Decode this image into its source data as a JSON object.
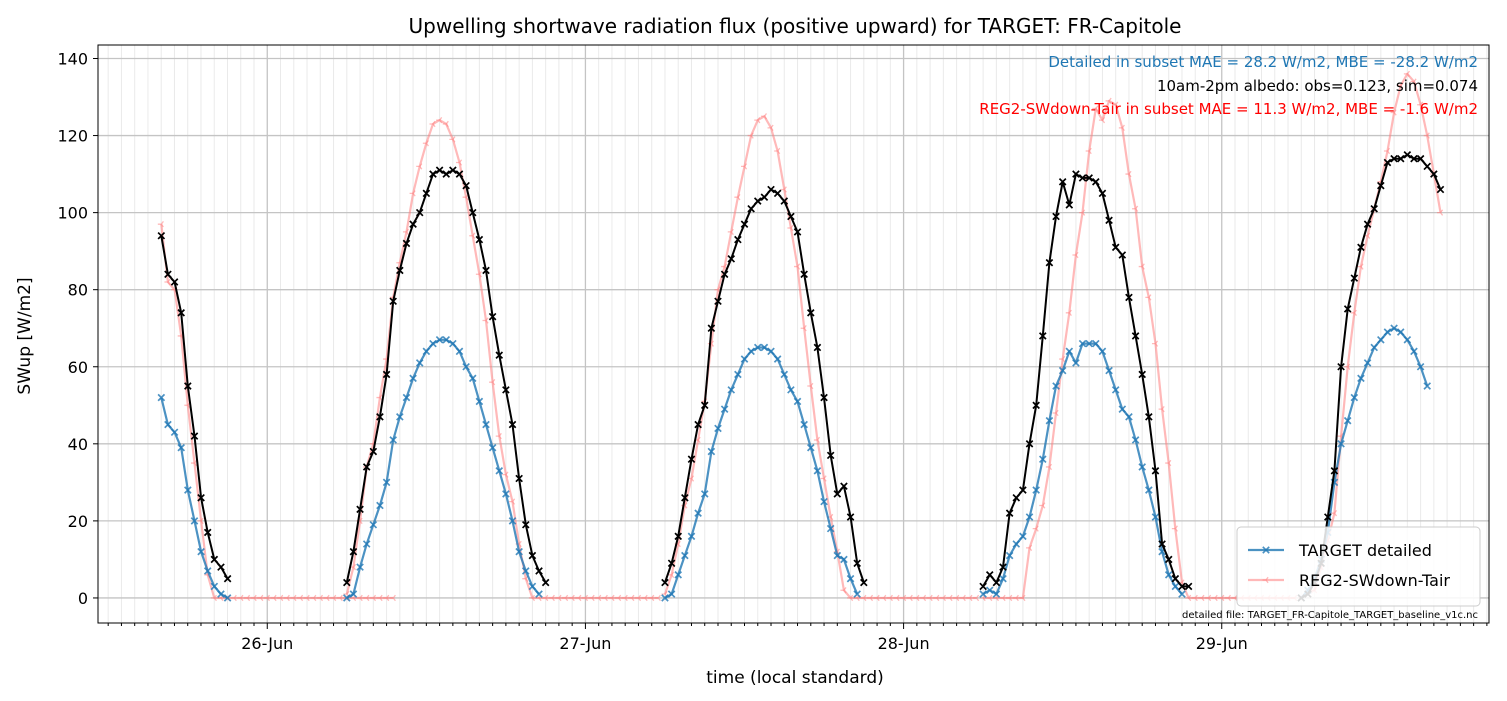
{
  "chart_data": {
    "type": "line",
    "title": "Upwelling shortwave radiation flux (positive upward) for TARGET: FR-Capitole",
    "xlabel": "time (local standard)",
    "ylabel": "SWup [W/m2]",
    "x_unit": "days since 26-Jun 00:00 (local standard)",
    "xlim": [
      -0.532,
      3.84
    ],
    "ylim": [
      -6.5,
      143.5
    ],
    "x_ticks": [
      {
        "value": 0,
        "label": "26-Jun"
      },
      {
        "value": 1,
        "label": "27-Jun"
      },
      {
        "value": 2,
        "label": "28-Jun"
      },
      {
        "value": 3,
        "label": "29-Jun"
      }
    ],
    "y_ticks": [
      0,
      20,
      40,
      60,
      80,
      100,
      120,
      140
    ],
    "grid": true,
    "legend": {
      "position": "lower right",
      "entries": [
        "TARGET detailed",
        "REG2-SWdown-Tair"
      ]
    },
    "annotations": [
      {
        "text": "Detailed in subset MAE = 28.2 W/m2, MBE = -28.2 W/m2",
        "color": "#1f77b4"
      },
      {
        "text": "10am-2pm albedo: obs=0.123, sim=0.074",
        "color": "#000000"
      },
      {
        "text": "REG2-SWdown-Tair in subset MAE = 11.3 W/m2, MBE = -1.6 W/m2",
        "color": "#ff0000"
      }
    ],
    "footnote": "detailed file: TARGET_FR-Capitole_TARGET_baseline_v1c.nc",
    "series": [
      {
        "name": "REG2-SWdown-Tair",
        "color": "#ff7f7f",
        "marker": "tri",
        "days": [
          {
            "start": -0.333,
            "values": [
              97,
              82,
              80,
              68,
              50,
              35,
              20,
              6,
              0,
              0,
              0,
              0,
              0,
              0,
              0,
              0,
              0,
              0,
              0,
              0,
              0,
              0,
              0,
              0,
              0,
              0,
              0,
              0,
              0,
              0,
              0,
              0,
              0,
              0,
              0,
              0
            ]
          },
          {
            "start": 0.25,
            "values": [
              1,
              8,
              20,
              34,
              40,
              52,
              62,
              78,
              87,
              95,
              105,
              112,
              118,
              123,
              124,
              123,
              119,
              113,
              104,
              94,
              84,
              72,
              56,
              42,
              32,
              25,
              14,
              5,
              0,
              0,
              0,
              0,
              0,
              0,
              0,
              0,
              0,
              0,
              0,
              0,
              0,
              0,
              0,
              0,
              0,
              0,
              0,
              0
            ]
          },
          {
            "start": 1.25,
            "values": [
              1,
              6,
              14,
              24,
              31,
              41,
              51,
              66,
              80,
              86,
              95,
              104,
              112,
              120,
              124,
              125,
              122,
              116,
              106,
              96,
              86,
              70,
              55,
              41,
              31,
              21,
              12,
              2,
              0,
              0,
              0,
              0,
              0,
              0,
              0,
              0,
              0,
              0,
              0,
              0,
              0,
              0,
              0,
              0,
              0,
              0,
              0,
              0
            ]
          },
          {
            "start": 2.25,
            "values": [
              0,
              0,
              0,
              0,
              0,
              0,
              0,
              13,
              18,
              24,
              34,
              48,
              62,
              74,
              89,
              100,
              116,
              127,
              124,
              129,
              128,
              122,
              110,
              101,
              86,
              78,
              66,
              49,
              35,
              18,
              4,
              0,
              0,
              0,
              0,
              0,
              0,
              0,
              0,
              0,
              0,
              0,
              0,
              0,
              0,
              0,
              0,
              0
            ]
          },
          {
            "start": 3.25,
            "values": [
              0,
              1,
              2,
              8,
              15,
              22,
              42,
              60,
              74,
              86,
              94,
              101,
              108,
              116,
              126,
              133,
              136,
              134,
              128,
              120,
              110,
              100
            ]
          }
        ]
      },
      {
        "name": "TARGET detailed",
        "color": "#1f77b4",
        "marker": "x",
        "days": [
          {
            "start": -0.333,
            "values": [
              52,
              45,
              43,
              39,
              28,
              20,
              12,
              7,
              3,
              1,
              0
            ]
          },
          {
            "start": 0.25,
            "values": [
              0,
              1,
              8,
              14,
              19,
              24,
              30,
              41,
              47,
              52,
              57,
              61,
              64,
              66,
              67,
              67,
              66,
              64,
              60,
              57,
              51,
              45,
              39,
              33,
              27,
              20,
              12,
              7,
              3,
              1
            ]
          },
          {
            "start": 1.25,
            "values": [
              0,
              1,
              6,
              11,
              16,
              22,
              27,
              38,
              44,
              49,
              54,
              58,
              62,
              64,
              65,
              65,
              64,
              62,
              58,
              54,
              51,
              45,
              39,
              33,
              25,
              18,
              11,
              10,
              5,
              1
            ]
          },
          {
            "start": 2.25,
            "values": [
              1,
              2,
              1,
              5,
              11,
              14,
              16,
              21,
              28,
              36,
              46,
              55,
              59,
              64,
              61,
              66,
              66,
              66,
              64,
              59,
              54,
              49,
              47,
              41,
              34,
              28,
              21,
              12,
              6,
              3,
              1
            ]
          },
          {
            "start": 3.25,
            "values": [
              0,
              2,
              5,
              10,
              17,
              30,
              40,
              46,
              52,
              57,
              61,
              65,
              67,
              69,
              70,
              69,
              67,
              64,
              60,
              55
            ]
          }
        ]
      },
      {
        "name": "",
        "color": "#000000",
        "marker": "x",
        "days": [
          {
            "start": -0.333,
            "values": [
              94,
              84,
              82,
              74,
              55,
              42,
              26,
              17,
              10,
              8,
              5
            ]
          },
          {
            "start": 0.25,
            "values": [
              4,
              12,
              23,
              34,
              38,
              47,
              58,
              77,
              85,
              92,
              97,
              100,
              105,
              110,
              111,
              110,
              111,
              110,
              107,
              100,
              93,
              85,
              73,
              63,
              54,
              45,
              31,
              19,
              11,
              7,
              4
            ]
          },
          {
            "start": 1.25,
            "values": [
              4,
              9,
              16,
              26,
              36,
              45,
              50,
              70,
              77,
              84,
              88,
              93,
              97,
              101,
              103,
              104,
              106,
              105,
              103,
              99,
              95,
              84,
              74,
              65,
              52,
              37,
              27,
              29,
              21,
              9,
              4
            ]
          },
          {
            "start": 2.25,
            "values": [
              3,
              6,
              4,
              8,
              22,
              26,
              28,
              40,
              50,
              68,
              87,
              99,
              108,
              102,
              110,
              109,
              109,
              108,
              105,
              98,
              91,
              89,
              78,
              68,
              58,
              47,
              33,
              14,
              10,
              5,
              3,
              3
            ]
          },
          {
            "start": 3.25,
            "values": [
              0,
              1,
              4,
              9,
              21,
              33,
              60,
              75,
              83,
              91,
              97,
              101,
              107,
              113,
              114,
              114,
              115,
              114,
              114,
              112,
              110,
              106
            ]
          }
        ]
      }
    ]
  }
}
